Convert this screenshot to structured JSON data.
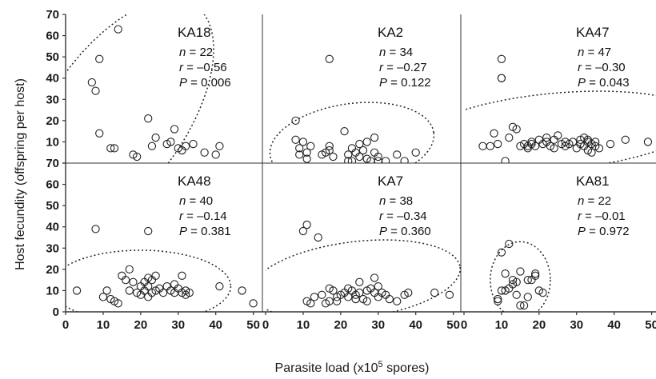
{
  "chart_data": {
    "type": "scatter",
    "xlabel_prefix": "Parasite load (x10",
    "xlabel_sup": "5",
    "xlabel_suffix": " spores)",
    "ylabel": "Host fecundity (offspring per host)",
    "xlim": [
      0,
      52
    ],
    "ylim": [
      0,
      70
    ],
    "xticks": [
      "0",
      "10",
      "20",
      "30",
      "40",
      "50"
    ],
    "yticks": [
      "0",
      "10",
      "20",
      "30",
      "40",
      "50",
      "60",
      "70"
    ],
    "colors": {
      "points": "#222222",
      "ellipse": "#222222",
      "axes": "#333333"
    },
    "panels": [
      {
        "label": "KA18",
        "n": "n = 22",
        "r": "r = –0.56",
        "p": "P = 0.006",
        "stat_parts": [
          [
            "n",
            " = 22"
          ],
          [
            "r",
            " = –0.56"
          ],
          [
            "P",
            " = 0.006"
          ]
        ],
        "ellipse": {
          "cx": 14,
          "cy": 22,
          "rx": 36,
          "ry": 32,
          "angle_deg": -55
        },
        "points": [
          [
            7,
            38
          ],
          [
            8,
            34
          ],
          [
            9,
            49
          ],
          [
            9,
            14
          ],
          [
            12,
            7
          ],
          [
            13,
            7
          ],
          [
            14,
            63
          ],
          [
            18,
            4
          ],
          [
            19,
            3
          ],
          [
            22,
            21
          ],
          [
            23,
            8
          ],
          [
            24,
            12
          ],
          [
            27,
            9
          ],
          [
            28,
            10
          ],
          [
            29,
            16
          ],
          [
            30,
            7
          ],
          [
            31,
            6
          ],
          [
            32,
            8
          ],
          [
            34,
            9
          ],
          [
            37,
            5
          ],
          [
            40,
            4
          ],
          [
            41,
            8
          ]
        ]
      },
      {
        "label": "KA2",
        "n": "n = 34",
        "r": "r = –0.27",
        "p": "P = 0.122",
        "stat_parts": [
          [
            "n",
            " = 34"
          ],
          [
            "r",
            " = –0.27"
          ],
          [
            "P",
            " = 0.122"
          ]
        ],
        "ellipse": {
          "cx": 23,
          "cy": 9,
          "rx": 22,
          "ry": 19,
          "angle_deg": -8
        },
        "points": [
          [
            8,
            20
          ],
          [
            8,
            11
          ],
          [
            9,
            7
          ],
          [
            9,
            4
          ],
          [
            10,
            10
          ],
          [
            11,
            2
          ],
          [
            11,
            5
          ],
          [
            12,
            8
          ],
          [
            15,
            4
          ],
          [
            16,
            5
          ],
          [
            17,
            49
          ],
          [
            17,
            8
          ],
          [
            17,
            6
          ],
          [
            18,
            3
          ],
          [
            21,
            15
          ],
          [
            22,
            4
          ],
          [
            22,
            1
          ],
          [
            23,
            1
          ],
          [
            23,
            7
          ],
          [
            24,
            5
          ],
          [
            25,
            9
          ],
          [
            25,
            3
          ],
          [
            26,
            6
          ],
          [
            27,
            10
          ],
          [
            27,
            2
          ],
          [
            28,
            1
          ],
          [
            29,
            12
          ],
          [
            29,
            5
          ],
          [
            30,
            3
          ],
          [
            30,
            1
          ],
          [
            32,
            1
          ],
          [
            35,
            4
          ],
          [
            37,
            1
          ],
          [
            40,
            5
          ]
        ]
      },
      {
        "label": "KA47",
        "n": "n = 47",
        "r": "r = –0.30",
        "p": "P = 0.043",
        "stat_parts": [
          [
            "n",
            " = 47"
          ],
          [
            "r",
            " = –0.30"
          ],
          [
            "P",
            " = 0.043"
          ]
        ],
        "ellipse": {
          "cx": 25,
          "cy": 15,
          "rx": 38,
          "ry": 18,
          "angle_deg": -5
        },
        "points": [
          [
            5,
            8
          ],
          [
            7,
            8
          ],
          [
            8,
            14
          ],
          [
            9,
            9
          ],
          [
            10,
            49
          ],
          [
            10,
            40
          ],
          [
            10,
            40
          ],
          [
            11,
            1
          ],
          [
            12,
            12
          ],
          [
            13,
            17
          ],
          [
            14,
            16
          ],
          [
            15,
            8
          ],
          [
            16,
            9
          ],
          [
            17,
            8
          ],
          [
            17,
            7
          ],
          [
            18,
            9
          ],
          [
            18,
            10
          ],
          [
            19,
            8
          ],
          [
            20,
            11
          ],
          [
            21,
            9
          ],
          [
            22,
            10
          ],
          [
            22,
            12
          ],
          [
            23,
            8
          ],
          [
            24,
            7
          ],
          [
            24,
            11
          ],
          [
            25,
            13
          ],
          [
            26,
            9
          ],
          [
            27,
            8
          ],
          [
            27,
            10
          ],
          [
            28,
            9
          ],
          [
            29,
            10
          ],
          [
            30,
            7
          ],
          [
            31,
            9
          ],
          [
            31,
            11
          ],
          [
            32,
            8
          ],
          [
            32,
            12
          ],
          [
            33,
            10
          ],
          [
            33,
            6
          ],
          [
            33,
            11
          ],
          [
            34,
            9
          ],
          [
            34,
            5
          ],
          [
            35,
            10
          ],
          [
            35,
            8
          ],
          [
            36,
            7
          ],
          [
            39,
            9
          ],
          [
            43,
            11
          ],
          [
            49,
            10
          ]
        ]
      },
      {
        "label": "KA48",
        "n": "n = 40",
        "r": "r = –0.14",
        "p": "P = 0.381",
        "stat_parts": [
          [
            "n",
            " = 40"
          ],
          [
            "r",
            " = –0.14"
          ],
          [
            "P",
            " = 0.381"
          ]
        ],
        "ellipse": {
          "cx": 20,
          "cy": 12,
          "rx": 24,
          "ry": 17,
          "angle_deg": 0
        },
        "points": [
          [
            3,
            10
          ],
          [
            8,
            39
          ],
          [
            10,
            7
          ],
          [
            11,
            10
          ],
          [
            12,
            6
          ],
          [
            13,
            5
          ],
          [
            14,
            4
          ],
          [
            15,
            17
          ],
          [
            16,
            15
          ],
          [
            17,
            20
          ],
          [
            17,
            10
          ],
          [
            18,
            14
          ],
          [
            19,
            9
          ],
          [
            20,
            12
          ],
          [
            20,
            8
          ],
          [
            21,
            10
          ],
          [
            21,
            14
          ],
          [
            22,
            38
          ],
          [
            22,
            7
          ],
          [
            22,
            12
          ],
          [
            23,
            9
          ],
          [
            23,
            15
          ],
          [
            24,
            17
          ],
          [
            24,
            10
          ],
          [
            25,
            11
          ],
          [
            26,
            9
          ],
          [
            27,
            12
          ],
          [
            28,
            10
          ],
          [
            29,
            13
          ],
          [
            29,
            9
          ],
          [
            30,
            11
          ],
          [
            31,
            17
          ],
          [
            31,
            9
          ],
          [
            32,
            10
          ],
          [
            32,
            8
          ],
          [
            33,
            9
          ],
          [
            41,
            12
          ],
          [
            47,
            10
          ],
          [
            50,
            4
          ],
          [
            22,
            16
          ]
        ]
      },
      {
        "label": "KA7",
        "n": "n = 38",
        "r": "r = –0.34",
        "p": "P = 0.360",
        "stat_parts": [
          [
            "n",
            " = 38"
          ],
          [
            "r",
            " = –0.34"
          ],
          [
            "P",
            " = 0.360"
          ]
        ],
        "ellipse": {
          "cx": 24,
          "cy": 15,
          "rx": 28,
          "ry": 18,
          "angle_deg": -7
        },
        "points": [
          [
            10,
            38
          ],
          [
            11,
            41
          ],
          [
            11,
            5
          ],
          [
            12,
            4
          ],
          [
            13,
            7
          ],
          [
            14,
            35
          ],
          [
            15,
            8
          ],
          [
            16,
            4
          ],
          [
            17,
            5
          ],
          [
            17,
            11
          ],
          [
            18,
            10
          ],
          [
            19,
            7
          ],
          [
            19,
            5
          ],
          [
            20,
            8
          ],
          [
            21,
            9
          ],
          [
            22,
            7
          ],
          [
            22,
            11
          ],
          [
            23,
            10
          ],
          [
            24,
            8
          ],
          [
            24,
            6
          ],
          [
            25,
            14
          ],
          [
            25,
            9
          ],
          [
            26,
            6
          ],
          [
            27,
            10
          ],
          [
            27,
            5
          ],
          [
            28,
            11
          ],
          [
            29,
            9
          ],
          [
            29,
            16
          ],
          [
            30,
            7
          ],
          [
            30,
            12
          ],
          [
            31,
            9
          ],
          [
            32,
            8
          ],
          [
            33,
            6
          ],
          [
            35,
            5
          ],
          [
            37,
            8
          ],
          [
            38,
            9
          ],
          [
            45,
            9
          ],
          [
            49,
            8
          ]
        ]
      },
      {
        "label": "KA81",
        "n": "n = 22",
        "r": "r = –0.01",
        "p": "P = 0.972",
        "stat_parts": [
          [
            "n",
            " = 22"
          ],
          [
            "r",
            " = –0.01"
          ],
          [
            "P",
            " = 0.972"
          ]
        ],
        "ellipse": {
          "cx": 15,
          "cy": 15,
          "rx": 8,
          "ry": 18,
          "angle_deg": 0
        },
        "points": [
          [
            9,
            6
          ],
          [
            9,
            5
          ],
          [
            10,
            28
          ],
          [
            10,
            10
          ],
          [
            11,
            18
          ],
          [
            11,
            10
          ],
          [
            12,
            11
          ],
          [
            12,
            32
          ],
          [
            13,
            13
          ],
          [
            13,
            15
          ],
          [
            14,
            14
          ],
          [
            14,
            8
          ],
          [
            15,
            19
          ],
          [
            15,
            3
          ],
          [
            16,
            3
          ],
          [
            17,
            15
          ],
          [
            17,
            7
          ],
          [
            18,
            15
          ],
          [
            19,
            17
          ],
          [
            19,
            18
          ],
          [
            20,
            10
          ],
          [
            21,
            9
          ]
        ]
      }
    ]
  }
}
